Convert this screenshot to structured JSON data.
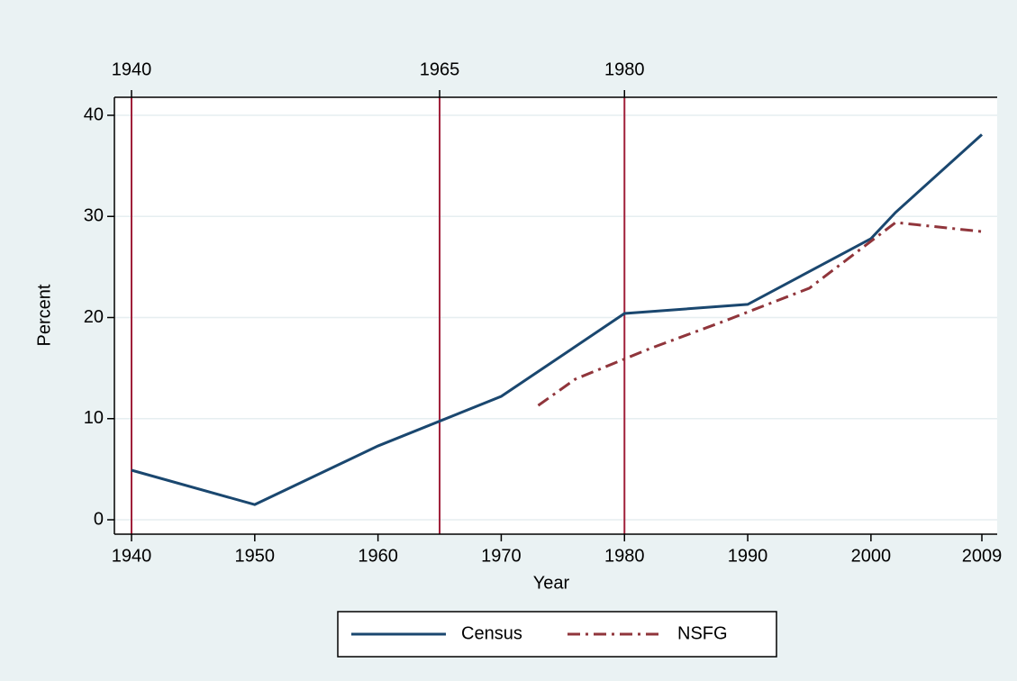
{
  "chart_data": {
    "type": "line",
    "xlabel": "Year",
    "ylabel": "Percent",
    "xlim": [
      1940,
      2009
    ],
    "ylim": [
      0,
      40
    ],
    "xticks": [
      1940,
      1950,
      1960,
      1970,
      1980,
      1990,
      2000,
      2009
    ],
    "yticks": [
      0,
      10,
      20,
      30,
      40
    ],
    "x2ticks": [
      1940,
      1965,
      1980
    ],
    "x2ticks_color": "#a0203a",
    "grid": true,
    "legend": "bottom",
    "series": [
      {
        "name": "Census",
        "color": "#1a476f",
        "dash": "solid",
        "x": [
          1940,
          1950,
          1960,
          1970,
          1980,
          1990,
          2000,
          2002,
          2009
        ],
        "values": [
          4.9,
          1.5,
          7.3,
          12.2,
          20.4,
          21.3,
          27.8,
          30.4,
          38.1
        ]
      },
      {
        "name": "NSFG",
        "color": "#90353b",
        "dash": "dashdot",
        "x": [
          1973,
          1976,
          1982,
          1988,
          1995,
          2002,
          2009
        ],
        "values": [
          11.3,
          13.9,
          16.9,
          19.6,
          22.9,
          29.4,
          28.5
        ]
      }
    ]
  }
}
